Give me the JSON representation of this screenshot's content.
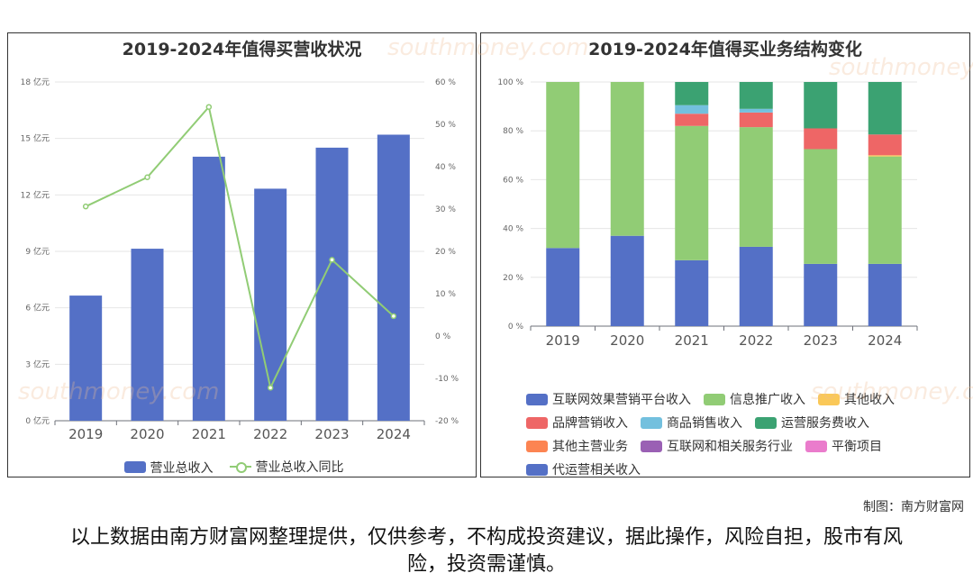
{
  "chart_data": [
    {
      "type": "bar+line",
      "title": "2019-2024年值得买营收状况",
      "categories": [
        "2019",
        "2020",
        "2021",
        "2022",
        "2023",
        "2024"
      ],
      "series": [
        {
          "name": "营业总收入",
          "type": "bar",
          "axis": "left",
          "unit": "亿元",
          "values": [
            6.65,
            9.14,
            14.03,
            12.33,
            14.51,
            15.2
          ]
        },
        {
          "name": "营业总收入同比",
          "type": "line",
          "axis": "right",
          "unit": "%",
          "values": [
            30.6,
            37.5,
            54.1,
            -12.2,
            18.0,
            4.7
          ]
        }
      ],
      "ylim_left": [
        0,
        18
      ],
      "yticks_left": [
        "0 亿元",
        "3 亿元",
        "6 亿元",
        "9 亿元",
        "12 亿元",
        "15 亿元",
        "18 亿元"
      ],
      "ylim_right": [
        -20,
        60
      ],
      "yticks_right": [
        "-20 %",
        "-10 %",
        "0 %",
        "10 %",
        "20 %",
        "30 %",
        "40 %",
        "50 %",
        "60 %"
      ],
      "colors": {
        "bar": "#5470c6",
        "line": "#91cc75"
      }
    },
    {
      "type": "stacked-bar-percent",
      "title": "2019-2024年值得买业务结构变化",
      "categories": [
        "2019",
        "2020",
        "2021",
        "2022",
        "2023",
        "2024"
      ],
      "ylim": [
        0,
        100
      ],
      "yticks": [
        "0 %",
        "20 %",
        "40 %",
        "60 %",
        "80 %",
        "100 %"
      ],
      "series": [
        {
          "name": "互联网效果营销平台收入",
          "color": "#5470c6",
          "values": [
            32,
            37,
            27,
            32.5,
            25.5,
            25.5
          ]
        },
        {
          "name": "信息推广收入",
          "color": "#91cc75",
          "values": [
            68,
            63,
            55,
            49,
            47,
            44
          ]
        },
        {
          "name": "其他收入",
          "color": "#fac858",
          "values": [
            0,
            0,
            0,
            0,
            0,
            0.5
          ]
        },
        {
          "name": "品牌营销收入",
          "color": "#ee6666",
          "values": [
            0,
            0,
            5,
            6,
            8.5,
            8.5
          ]
        },
        {
          "name": "商品销售收入",
          "color": "#73c0de",
          "values": [
            0,
            0,
            3.5,
            1.5,
            0,
            0
          ]
        },
        {
          "name": "运营服务费收入",
          "color": "#3ba272",
          "values": [
            0,
            0,
            9.5,
            11,
            19,
            21.5
          ]
        },
        {
          "name": "其他主营业务",
          "color": "#fc8452",
          "values": [
            0,
            0,
            0,
            0,
            0,
            0
          ]
        },
        {
          "name": "互联网和相关服务行业",
          "color": "#9a60b4",
          "values": [
            0,
            0,
            0,
            0,
            0,
            0
          ]
        },
        {
          "name": "平衡项目",
          "color": "#ea7ccc",
          "values": [
            0,
            0,
            0,
            0,
            0,
            0
          ]
        },
        {
          "name": "代运营相关收入",
          "color": "#5470c6",
          "values": [
            0,
            0,
            0,
            0,
            0,
            0
          ]
        }
      ]
    }
  ],
  "credit": "制图：南方财富网",
  "disclaimer": "以上数据由南方财富网整理提供，仅供参考，不构成投资建议，据此操作，风险自担，股市有风险，投资需谨慎。",
  "watermark": {
    "cn": "南方财富网",
    "en": "southmoney.com"
  }
}
